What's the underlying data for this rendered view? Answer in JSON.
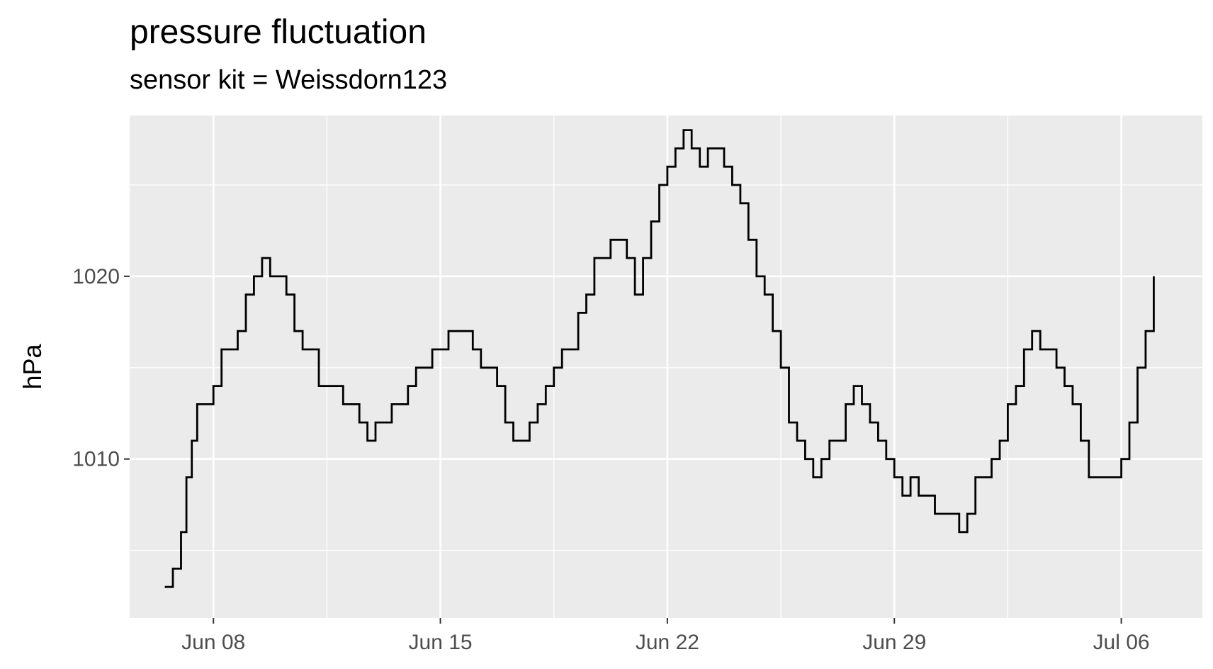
{
  "chart_data": {
    "type": "line",
    "title": "pressure fluctuation",
    "subtitle": "sensor kit = Weissdorn123",
    "xlabel": "",
    "ylabel": "hPa",
    "x_ticks": [
      "Jun 08",
      "Jun 15",
      "Jun 22",
      "Jun 29",
      "Jul 06"
    ],
    "y_ticks": [
      1010,
      1020
    ],
    "xlim": [
      "2021-06-05T10:00",
      "2021-07-08T12:00"
    ],
    "ylim": [
      1001.3,
      1028.8
    ],
    "grid": true,
    "legend": "none",
    "line_color": "#000000",
    "panel_color": "#ebebeb",
    "series": [
      {
        "x": [
          "2021-06-06T12:00",
          "2021-06-06T18:00",
          "2021-06-07T00:00",
          "2021-06-07T04:00",
          "2021-06-07T08:00",
          "2021-06-07T12:00",
          "2021-06-07T18:00",
          "2021-06-08T00:00",
          "2021-06-08T06:00",
          "2021-06-08T12:00",
          "2021-06-08T18:00",
          "2021-06-09T00:00",
          "2021-06-09T06:00",
          "2021-06-09T12:00",
          "2021-06-09T18:00",
          "2021-06-10T00:00",
          "2021-06-10T06:00",
          "2021-06-10T12:00",
          "2021-06-10T18:00",
          "2021-06-11T00:00",
          "2021-06-11T06:00",
          "2021-06-11T12:00",
          "2021-06-11T18:00",
          "2021-06-12T00:00",
          "2021-06-12T06:00",
          "2021-06-12T12:00",
          "2021-06-12T18:00",
          "2021-06-13T00:00",
          "2021-06-13T06:00",
          "2021-06-13T12:00",
          "2021-06-13T18:00",
          "2021-06-14T00:00",
          "2021-06-14T06:00",
          "2021-06-14T12:00",
          "2021-06-14T18:00",
          "2021-06-15T00:00",
          "2021-06-15T06:00",
          "2021-06-15T12:00",
          "2021-06-15T18:00",
          "2021-06-16T00:00",
          "2021-06-16T06:00",
          "2021-06-16T12:00",
          "2021-06-16T18:00",
          "2021-06-17T00:00",
          "2021-06-17T06:00",
          "2021-06-17T12:00",
          "2021-06-17T18:00",
          "2021-06-18T00:00",
          "2021-06-18T06:00",
          "2021-06-18T12:00",
          "2021-06-18T18:00",
          "2021-06-19T00:00",
          "2021-06-19T06:00",
          "2021-06-19T12:00",
          "2021-06-19T18:00",
          "2021-06-20T00:00",
          "2021-06-20T06:00",
          "2021-06-20T12:00",
          "2021-06-20T18:00",
          "2021-06-21T00:00",
          "2021-06-21T06:00",
          "2021-06-21T12:00",
          "2021-06-21T18:00",
          "2021-06-22T00:00",
          "2021-06-22T06:00",
          "2021-06-22T12:00",
          "2021-06-22T18:00",
          "2021-06-23T00:00",
          "2021-06-23T06:00",
          "2021-06-23T12:00",
          "2021-06-23T18:00",
          "2021-06-24T00:00",
          "2021-06-24T06:00",
          "2021-06-24T12:00",
          "2021-06-24T18:00",
          "2021-06-25T00:00",
          "2021-06-25T06:00",
          "2021-06-25T12:00",
          "2021-06-25T18:00",
          "2021-06-26T00:00",
          "2021-06-26T06:00",
          "2021-06-26T12:00",
          "2021-06-26T18:00",
          "2021-06-27T00:00",
          "2021-06-27T06:00",
          "2021-06-27T12:00",
          "2021-06-27T18:00",
          "2021-06-28T00:00",
          "2021-06-28T06:00",
          "2021-06-28T12:00",
          "2021-06-28T18:00",
          "2021-06-29T00:00",
          "2021-06-29T06:00",
          "2021-06-29T12:00",
          "2021-06-29T18:00",
          "2021-06-30T00:00",
          "2021-06-30T06:00",
          "2021-06-30T12:00",
          "2021-06-30T18:00",
          "2021-07-01T00:00",
          "2021-07-01T06:00",
          "2021-07-01T12:00",
          "2021-07-01T18:00",
          "2021-07-02T00:00",
          "2021-07-02T06:00",
          "2021-07-02T12:00",
          "2021-07-02T18:00",
          "2021-07-03T00:00",
          "2021-07-03T06:00",
          "2021-07-03T12:00",
          "2021-07-03T18:00",
          "2021-07-04T00:00",
          "2021-07-04T06:00",
          "2021-07-04T12:00",
          "2021-07-04T18:00",
          "2021-07-05T00:00",
          "2021-07-05T06:00",
          "2021-07-05T12:00",
          "2021-07-05T18:00",
          "2021-07-06T00:00",
          "2021-07-06T06:00",
          "2021-07-06T12:00",
          "2021-07-06T18:00",
          "2021-07-07T00:00"
        ],
        "y": [
          1003,
          1004,
          1006,
          1009,
          1011,
          1013,
          1013,
          1014,
          1016,
          1016,
          1017,
          1019,
          1020,
          1021,
          1020,
          1020,
          1019,
          1017,
          1016,
          1016,
          1014,
          1014,
          1014,
          1013,
          1013,
          1012,
          1011,
          1012,
          1012,
          1013,
          1013,
          1014,
          1015,
          1015,
          1016,
          1016,
          1017,
          1017,
          1017,
          1016,
          1015,
          1015,
          1014,
          1012,
          1011,
          1011,
          1012,
          1013,
          1014,
          1015,
          1016,
          1016,
          1018,
          1019,
          1021,
          1021,
          1022,
          1022,
          1021,
          1019,
          1021,
          1023,
          1025,
          1026,
          1027,
          1028,
          1027,
          1026,
          1027,
          1027,
          1026,
          1025,
          1024,
          1022,
          1020,
          1019,
          1017,
          1015,
          1012,
          1011,
          1010,
          1009,
          1010,
          1011,
          1011,
          1013,
          1014,
          1013,
          1012,
          1011,
          1010,
          1009,
          1008,
          1009,
          1008,
          1008,
          1007,
          1007,
          1007,
          1006,
          1007,
          1009,
          1009,
          1010,
          1011,
          1013,
          1014,
          1016,
          1017,
          1016,
          1016,
          1015,
          1014,
          1013,
          1011,
          1009,
          1009,
          1009,
          1009,
          1010,
          1012,
          1015,
          1017,
          1020
        ]
      }
    ]
  }
}
